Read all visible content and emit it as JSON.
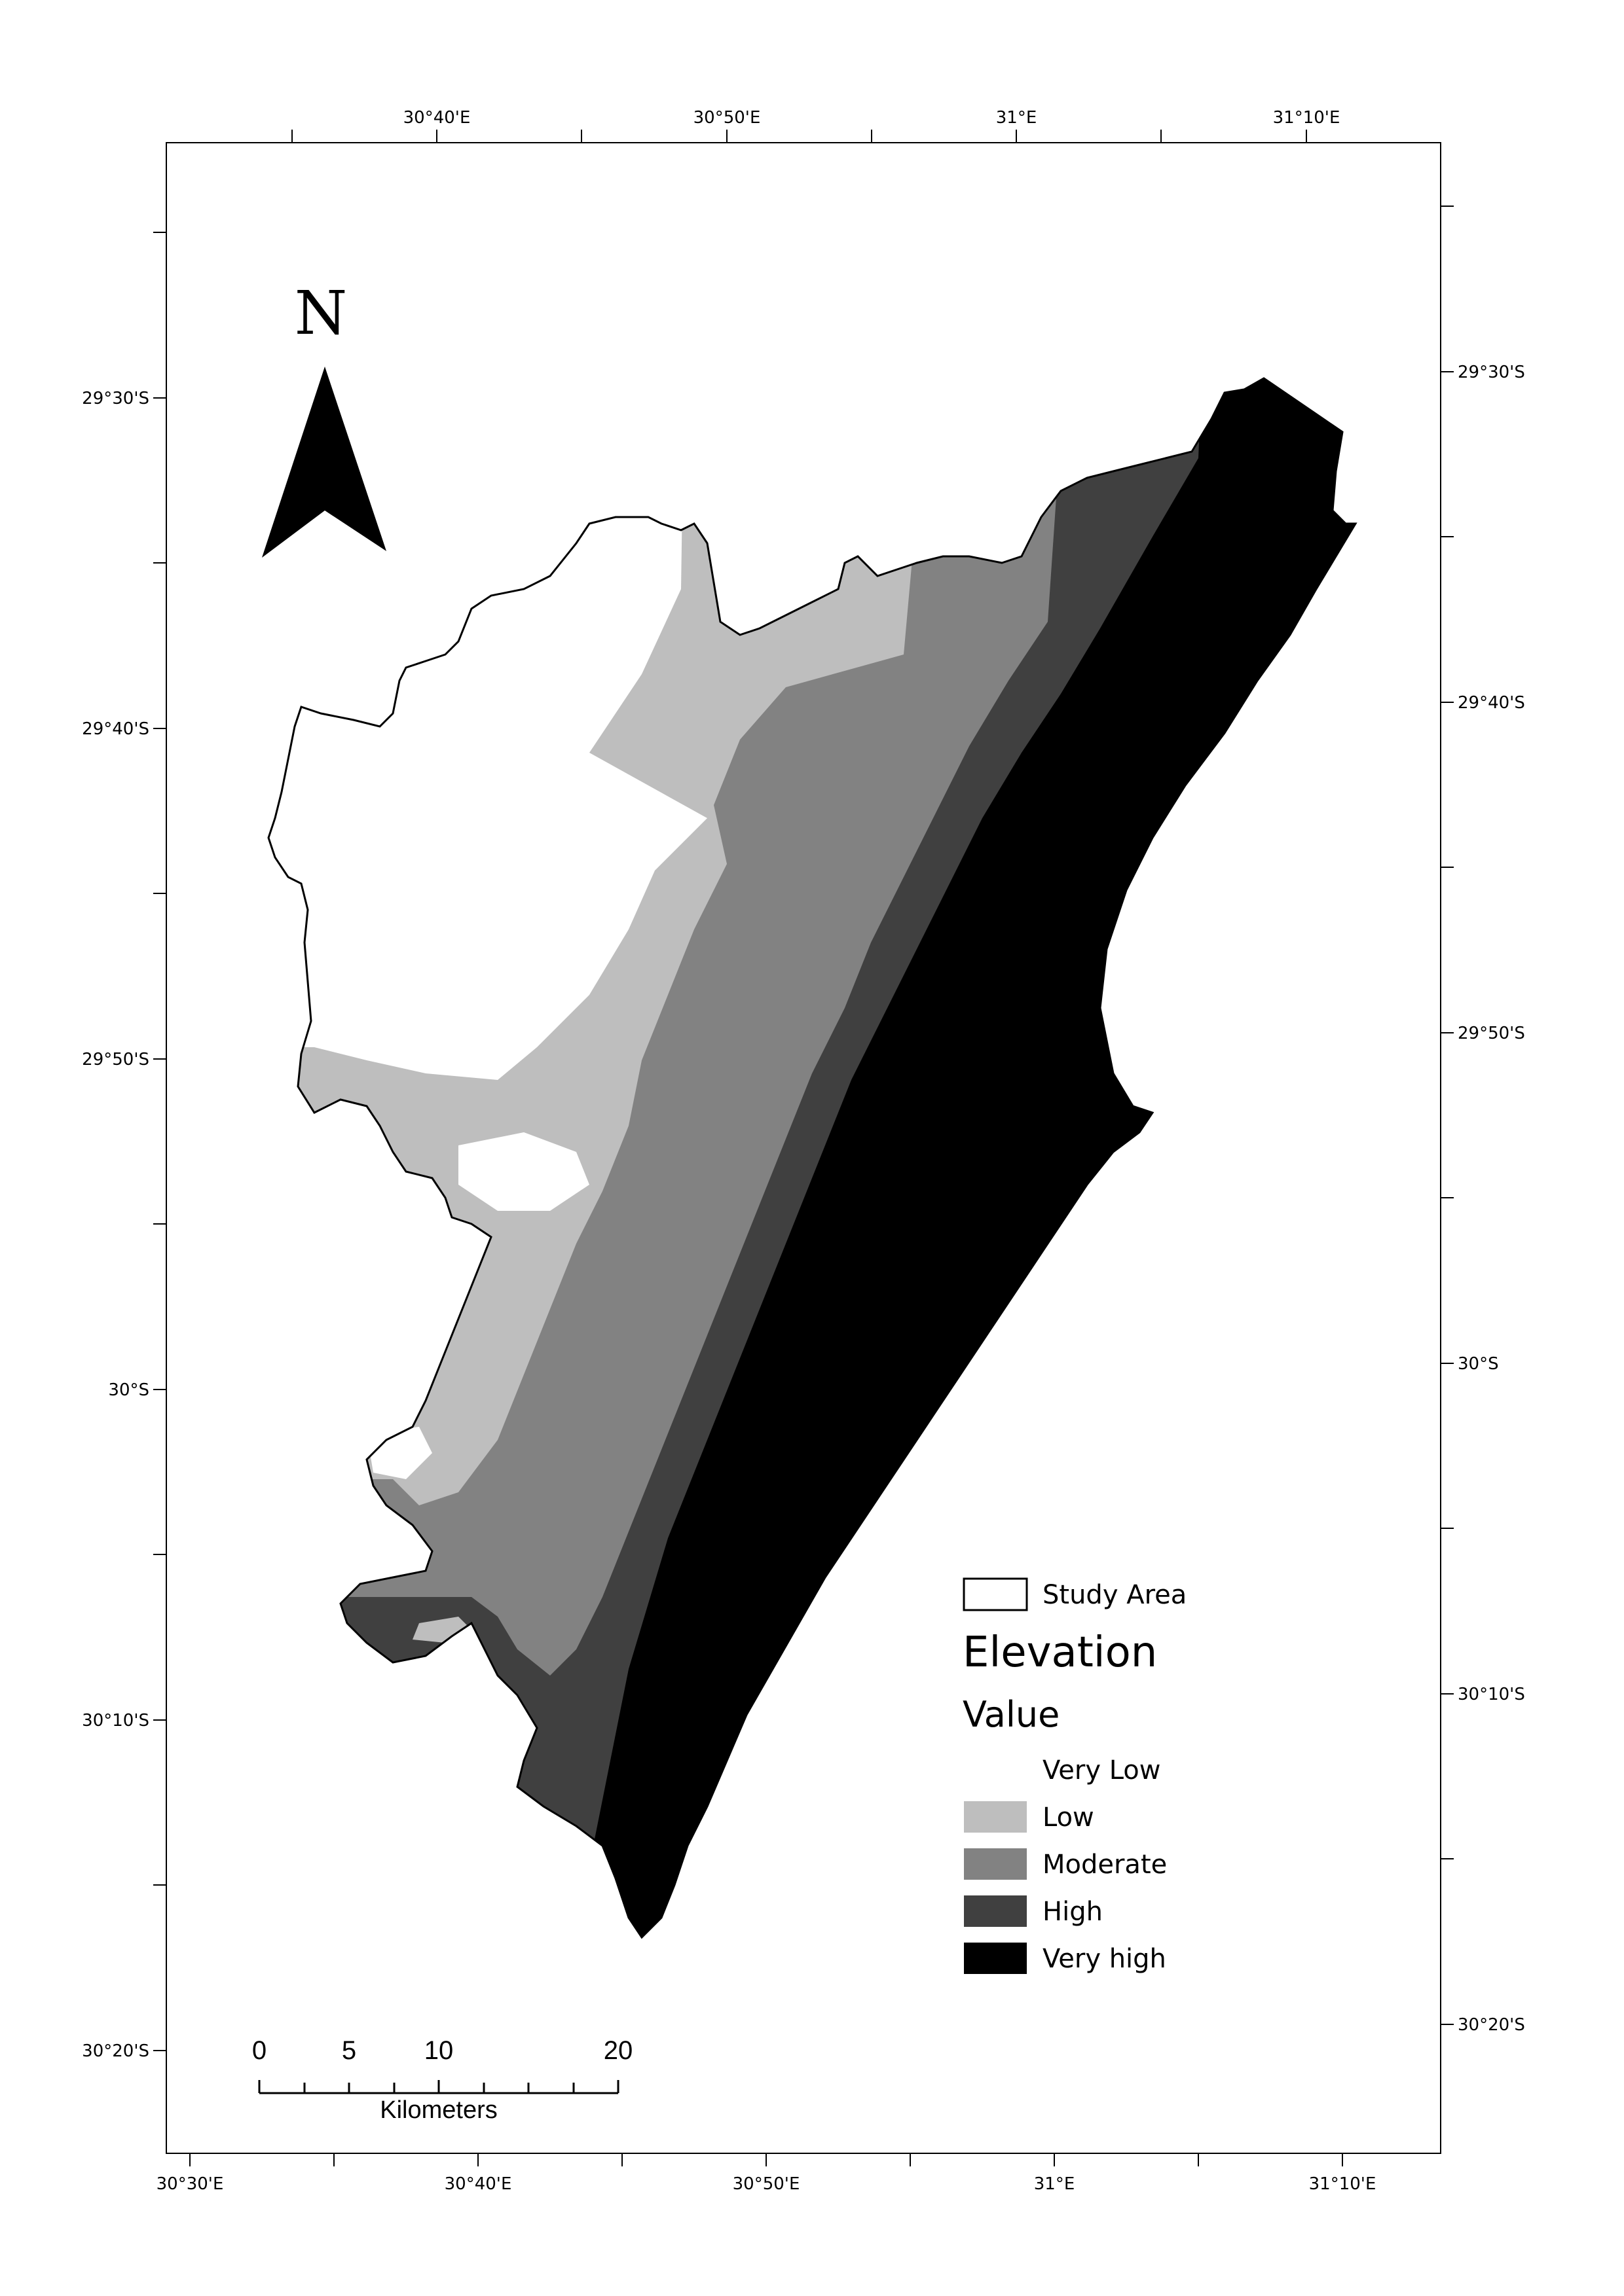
{
  "map": {
    "coordinate_labels": {
      "top": [
        "30°40'E",
        "30°50'E",
        "31°E",
        "31°10'E"
      ],
      "bottom": [
        "30°30'E",
        "30°40'E",
        "30°50'E",
        "31°E",
        "31°10'E"
      ],
      "left": [
        "29°30'S",
        "29°40'S",
        "29°50'S",
        "30°S",
        "30°10'S",
        "30°20'S"
      ],
      "right": [
        "29°30'S",
        "29°40'S",
        "29°50'S",
        "30°S",
        "30°10'S",
        "30°20'S"
      ]
    },
    "north_arrow": {
      "label": "N"
    },
    "legend": {
      "study_area_label": "Study Area",
      "title": "Elevation",
      "subtitle": "Value",
      "classes": [
        {
          "label": "Very Low",
          "color": "#ffffff"
        },
        {
          "label": "Low",
          "color": "#bebebe"
        },
        {
          "label": "Moderate",
          "color": "#828282"
        },
        {
          "label": "High",
          "color": "#404040"
        },
        {
          "label": "Very high",
          "color": "#000000"
        }
      ]
    },
    "scale_bar": {
      "tick_labels": [
        "0",
        "5",
        "10",
        "20"
      ],
      "unit": "Kilometers"
    }
  }
}
